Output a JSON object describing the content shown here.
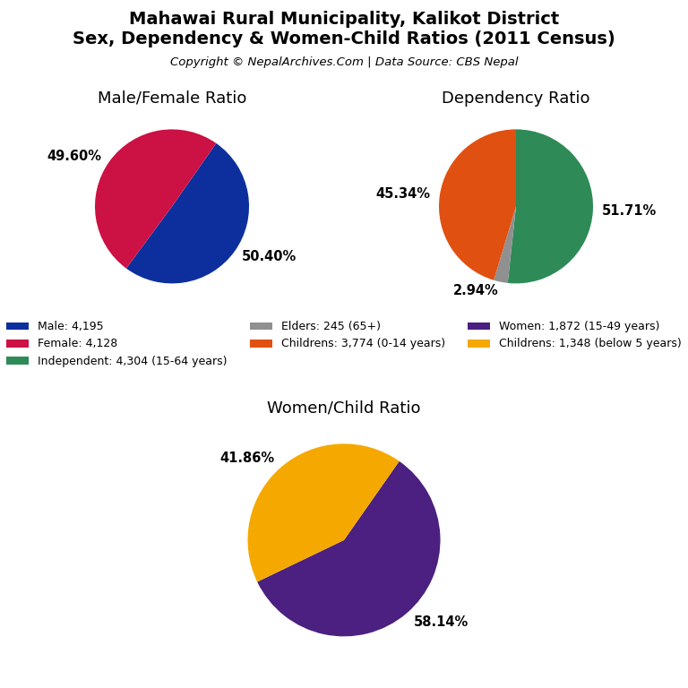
{
  "title": "Mahawai Rural Municipality, Kalikot District\nSex, Dependency & Women-Child Ratios (2011 Census)",
  "subtitle": "Copyright © NepalArchives.Com | Data Source: CBS Nepal",
  "legend": "center",
  "chart_data": [
    {
      "type": "pie",
      "title": "Male/Female Ratio",
      "categories": [
        "Male: 4,195",
        "Female: 4,128"
      ],
      "values": [
        50.4,
        49.6
      ],
      "value_labels": [
        "50.40%",
        "49.60%"
      ],
      "colors": [
        "#0d2f9e",
        "#cc1144"
      ],
      "data_labels": true
    },
    {
      "type": "pie",
      "title": "Dependency Ratio",
      "categories": [
        "Independent: 4,304 (15-64 years)",
        "Elders: 245 (65+)",
        "Childrens: 3,774 (0-14 years)"
      ],
      "values": [
        51.71,
        2.94,
        45.34
      ],
      "value_labels": [
        "51.71%",
        "2.94%",
        "45.34%"
      ],
      "colors": [
        "#2e8b57",
        "#909090",
        "#e05010"
      ],
      "data_labels": true
    },
    {
      "type": "pie",
      "title": "Women/Child Ratio",
      "categories": [
        "Women: 1,872 (15-49 years)",
        "Childrens: 1,348 (below 5 years)"
      ],
      "values": [
        58.14,
        41.86
      ],
      "value_labels": [
        "58.14%",
        "41.86%"
      ],
      "colors": [
        "#4b2080",
        "#f5a800"
      ],
      "data_labels": true
    }
  ]
}
